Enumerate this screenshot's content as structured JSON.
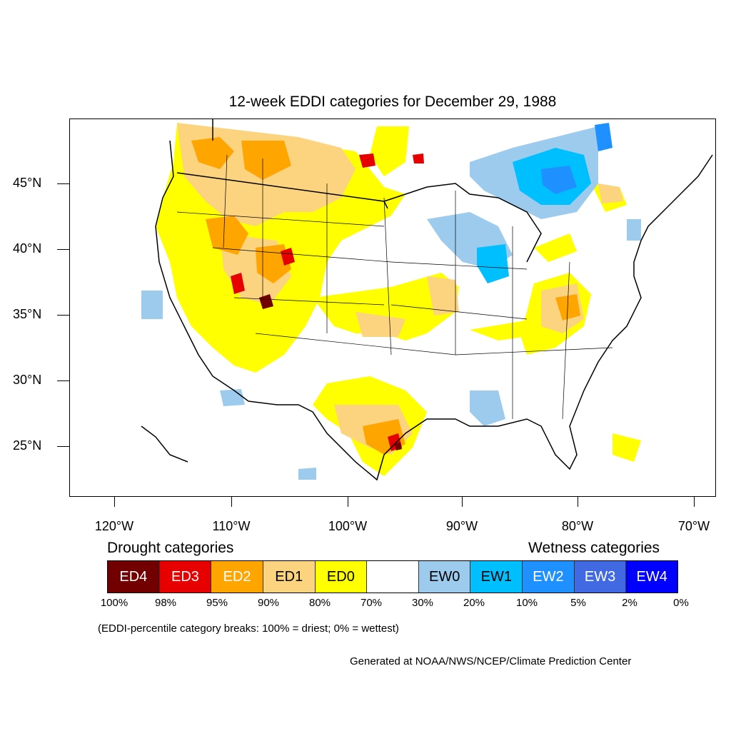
{
  "title": "12-week EDDI categories for December 29, 1988",
  "lat_labels": [
    "45°N",
    "40°N",
    "35°N",
    "30°N",
    "25°N"
  ],
  "lon_labels": [
    "120°W",
    "110°W",
    "100°W",
    "90°W",
    "80°W",
    "70°W"
  ],
  "legend": {
    "drought_heading": "Drought categories",
    "wetness_heading": "Wetness categories",
    "categories": [
      {
        "label": "ED4",
        "color": "#730000",
        "text_color": "#ffffff"
      },
      {
        "label": "ED3",
        "color": "#e60000",
        "text_color": "#ffffff"
      },
      {
        "label": "ED2",
        "color": "#ffa500",
        "text_color": "#ffffff"
      },
      {
        "label": "ED1",
        "color": "#fcd37f",
        "text_color": "#000000"
      },
      {
        "label": "ED0",
        "color": "#ffff00",
        "text_color": "#000000"
      },
      {
        "label": "",
        "color": "#ffffff",
        "text_color": "#000000"
      },
      {
        "label": "EW0",
        "color": "#9ccbee",
        "text_color": "#000000"
      },
      {
        "label": "EW1",
        "color": "#00bfff",
        "text_color": "#000000"
      },
      {
        "label": "EW2",
        "color": "#1e90ff",
        "text_color": "#ffffff"
      },
      {
        "label": "EW3",
        "color": "#4169e1",
        "text_color": "#ffffff"
      },
      {
        "label": "EW4",
        "color": "#0000ff",
        "text_color": "#ffffff"
      }
    ],
    "percentiles": [
      "100%",
      "98%",
      "95%",
      "90%",
      "80%",
      "70%",
      "30%",
      "20%",
      "10%",
      "5%",
      "2%",
      "0%"
    ]
  },
  "note": "(EDDI-percentile category breaks: 100% = driest; 0% = wettest)",
  "credit": "Generated at NOAA/NWS/NCEP/Climate Prediction Center"
}
